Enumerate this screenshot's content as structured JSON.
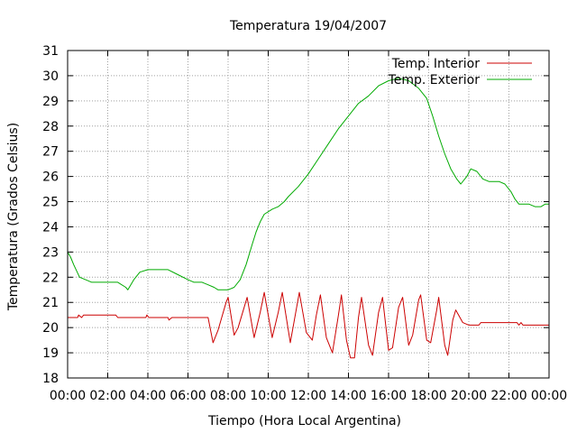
{
  "chart_data": {
    "type": "line",
    "title": "Temperatura 19/04/2007",
    "xlabel": "Tiempo (Hora Local Argentina)",
    "ylabel": "Temperatura (Grados Celsius)",
    "xlim": [
      0,
      24
    ],
    "ylim": [
      18,
      31
    ],
    "x_tick_values": [
      0,
      2,
      4,
      6,
      8,
      10,
      12,
      14,
      16,
      18,
      20,
      22,
      24
    ],
    "x_tick_labels": [
      "00:00",
      "02:00",
      "04:00",
      "06:00",
      "08:00",
      "10:00",
      "12:00",
      "14:00",
      "16:00",
      "18:00",
      "20:00",
      "22:00",
      "00:00"
    ],
    "y_tick_values": [
      18,
      19,
      20,
      21,
      22,
      23,
      24,
      25,
      26,
      27,
      28,
      29,
      30,
      31
    ],
    "y_tick_labels": [
      "18",
      "19",
      "20",
      "21",
      "22",
      "23",
      "24",
      "25",
      "26",
      "27",
      "28",
      "29",
      "30",
      "31"
    ],
    "grid": true,
    "legend_position": "top-right",
    "series": [
      {
        "name": "Temp. Interior",
        "color": "#cc0000",
        "points": [
          [
            0,
            20.4
          ],
          [
            0.5,
            20.4
          ],
          [
            0.55,
            20.5
          ],
          [
            0.7,
            20.4
          ],
          [
            0.8,
            20.5
          ],
          [
            1.5,
            20.5
          ],
          [
            2.4,
            20.5
          ],
          [
            2.5,
            20.4
          ],
          [
            3.5,
            20.4
          ],
          [
            3.9,
            20.4
          ],
          [
            3.95,
            20.5
          ],
          [
            4.05,
            20.4
          ],
          [
            5.0,
            20.4
          ],
          [
            5.05,
            20.3
          ],
          [
            5.2,
            20.4
          ],
          [
            6.0,
            20.4
          ],
          [
            7.0,
            20.4
          ],
          [
            7.1,
            20.0
          ],
          [
            7.25,
            19.4
          ],
          [
            7.5,
            19.9
          ],
          [
            7.9,
            21.0
          ],
          [
            8.0,
            21.2
          ],
          [
            8.3,
            19.7
          ],
          [
            8.5,
            20.0
          ],
          [
            8.8,
            20.8
          ],
          [
            8.95,
            21.2
          ],
          [
            9.3,
            19.6
          ],
          [
            9.6,
            20.6
          ],
          [
            9.8,
            21.4
          ],
          [
            10.2,
            19.6
          ],
          [
            10.5,
            20.6
          ],
          [
            10.7,
            21.4
          ],
          [
            11.1,
            19.4
          ],
          [
            11.35,
            20.5
          ],
          [
            11.55,
            21.4
          ],
          [
            11.9,
            19.8
          ],
          [
            12.2,
            19.5
          ],
          [
            12.4,
            20.5
          ],
          [
            12.6,
            21.3
          ],
          [
            12.9,
            19.6
          ],
          [
            13.2,
            19.0
          ],
          [
            13.5,
            20.5
          ],
          [
            13.65,
            21.3
          ],
          [
            13.9,
            19.5
          ],
          [
            14.1,
            18.8
          ],
          [
            14.3,
            18.8
          ],
          [
            14.5,
            20.4
          ],
          [
            14.65,
            21.2
          ],
          [
            15.0,
            19.3
          ],
          [
            15.2,
            18.9
          ],
          [
            15.5,
            20.6
          ],
          [
            15.7,
            21.2
          ],
          [
            16.0,
            19.1
          ],
          [
            16.2,
            19.2
          ],
          [
            16.5,
            20.8
          ],
          [
            16.7,
            21.2
          ],
          [
            17.0,
            19.3
          ],
          [
            17.2,
            19.7
          ],
          [
            17.5,
            21.1
          ],
          [
            17.6,
            21.3
          ],
          [
            17.9,
            19.5
          ],
          [
            18.1,
            19.4
          ],
          [
            18.4,
            20.7
          ],
          [
            18.5,
            21.2
          ],
          [
            18.8,
            19.3
          ],
          [
            18.95,
            18.9
          ],
          [
            19.2,
            20.3
          ],
          [
            19.35,
            20.7
          ],
          [
            19.7,
            20.2
          ],
          [
            20.0,
            20.1
          ],
          [
            20.5,
            20.1
          ],
          [
            20.6,
            20.2
          ],
          [
            22.4,
            20.2
          ],
          [
            22.5,
            20.1
          ],
          [
            22.6,
            20.2
          ],
          [
            22.7,
            20.1
          ],
          [
            24.0,
            20.1
          ]
        ]
      },
      {
        "name": "Temp. Exterior",
        "color": "#00aa00",
        "points": [
          [
            0,
            23.0
          ],
          [
            0.15,
            22.8
          ],
          [
            0.3,
            22.5
          ],
          [
            0.6,
            22.0
          ],
          [
            0.9,
            21.9
          ],
          [
            1.2,
            21.8
          ],
          [
            1.8,
            21.8
          ],
          [
            2.3,
            21.8
          ],
          [
            2.5,
            21.8
          ],
          [
            2.9,
            21.6
          ],
          [
            3.0,
            21.5
          ],
          [
            3.3,
            21.9
          ],
          [
            3.6,
            22.2
          ],
          [
            4.0,
            22.3
          ],
          [
            4.5,
            22.3
          ],
          [
            5.0,
            22.3
          ],
          [
            5.5,
            22.1
          ],
          [
            6.0,
            21.9
          ],
          [
            6.3,
            21.8
          ],
          [
            6.7,
            21.8
          ],
          [
            7.0,
            21.7
          ],
          [
            7.3,
            21.6
          ],
          [
            7.5,
            21.5
          ],
          [
            8.0,
            21.5
          ],
          [
            8.3,
            21.6
          ],
          [
            8.6,
            21.9
          ],
          [
            8.9,
            22.5
          ],
          [
            9.2,
            23.3
          ],
          [
            9.4,
            23.8
          ],
          [
            9.6,
            24.2
          ],
          [
            9.8,
            24.5
          ],
          [
            10.2,
            24.7
          ],
          [
            10.5,
            24.8
          ],
          [
            10.8,
            25.0
          ],
          [
            11.0,
            25.2
          ],
          [
            11.5,
            25.6
          ],
          [
            12.0,
            26.1
          ],
          [
            12.5,
            26.7
          ],
          [
            13.0,
            27.3
          ],
          [
            13.5,
            27.9
          ],
          [
            14.0,
            28.4
          ],
          [
            14.5,
            28.9
          ],
          [
            15.0,
            29.2
          ],
          [
            15.5,
            29.6
          ],
          [
            16.0,
            29.8
          ],
          [
            16.5,
            29.9
          ],
          [
            17.0,
            29.8
          ],
          [
            17.5,
            29.5
          ],
          [
            17.9,
            29.1
          ],
          [
            18.2,
            28.4
          ],
          [
            18.5,
            27.6
          ],
          [
            18.8,
            26.9
          ],
          [
            19.1,
            26.3
          ],
          [
            19.4,
            25.9
          ],
          [
            19.6,
            25.7
          ],
          [
            19.9,
            26.0
          ],
          [
            20.1,
            26.3
          ],
          [
            20.4,
            26.2
          ],
          [
            20.7,
            25.9
          ],
          [
            21.0,
            25.8
          ],
          [
            21.5,
            25.8
          ],
          [
            21.8,
            25.7
          ],
          [
            22.1,
            25.4
          ],
          [
            22.3,
            25.1
          ],
          [
            22.5,
            24.9
          ],
          [
            23.0,
            24.9
          ],
          [
            23.3,
            24.8
          ],
          [
            23.6,
            24.8
          ],
          [
            23.8,
            24.9
          ],
          [
            24.0,
            24.9
          ]
        ]
      }
    ]
  }
}
